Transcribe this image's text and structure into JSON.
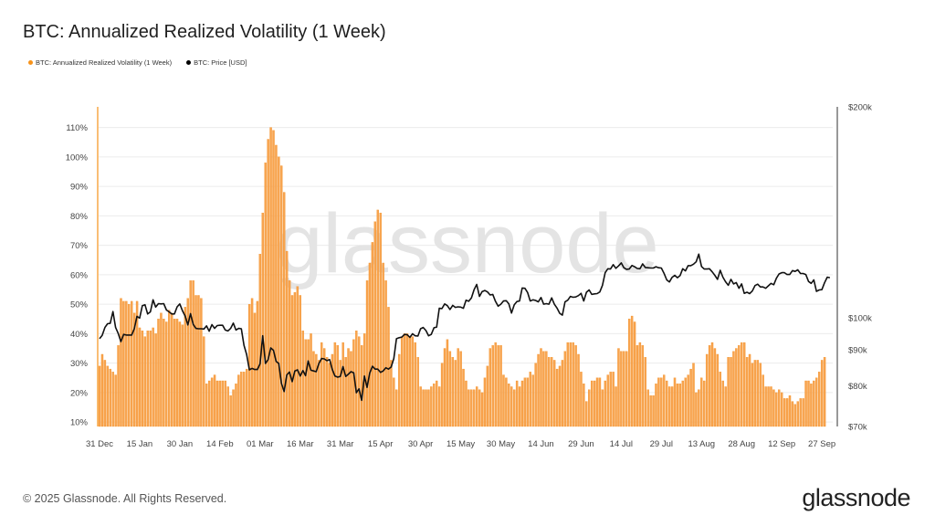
{
  "title": "BTC: Annualized Realized Volatility (1 Week)",
  "legend": [
    {
      "label": "BTC: Annualized Realized Volatility (1 Week)",
      "color": "#f7931a"
    },
    {
      "label": "BTC: Price [USD]",
      "color": "#000000"
    }
  ],
  "watermark": "glassnode",
  "footer": "© 2025 Glassnode. All Rights Reserved.",
  "logo": "glassnode",
  "chart_data": {
    "type": "bar+line",
    "title": "BTC: Annualized Realized Volatility (1 Week)",
    "x_tick_labels": [
      "31 Dec",
      "15 Jan",
      "30 Jan",
      "14 Feb",
      "01 Mar",
      "16 Mar",
      "31 Mar",
      "15 Apr",
      "30 Apr",
      "15 May",
      "30 May",
      "14 Jun",
      "29 Jun",
      "14 Jul",
      "29 Jul",
      "13 Aug",
      "28 Aug",
      "12 Sep",
      "27 Sep"
    ],
    "x_tick_interval_days": 15,
    "left_axis": {
      "ticks": [
        10,
        20,
        30,
        40,
        50,
        60,
        70,
        80,
        90,
        100,
        110
      ],
      "tick_labels": [
        "10%",
        "20%",
        "30%",
        "40%",
        "50%",
        "60%",
        "70%",
        "80%",
        "90%",
        "100%",
        "110%"
      ],
      "range": [
        8.5,
        117
      ],
      "grid": true
    },
    "right_axis": {
      "scale": "log",
      "ticks": [
        70000,
        80000,
        90000,
        100000,
        200000
      ],
      "tick_labels": [
        "$70k",
        "$80k",
        "$90k",
        "$100k",
        "$200k"
      ],
      "range": [
        70000,
        200000
      ]
    },
    "series": [
      {
        "name": "BTC: Annualized Realized Volatility (1 Week)",
        "type": "bar",
        "axis": "left",
        "color": "#f7931a",
        "unit": "%",
        "values": [
          29,
          33,
          31,
          29,
          28,
          27,
          26,
          36,
          52,
          51,
          51,
          50,
          51,
          47,
          51,
          42,
          41,
          39,
          41,
          41,
          42,
          40,
          45,
          47,
          45,
          44,
          48,
          47,
          45,
          45,
          44,
          43,
          49,
          52,
          58,
          58,
          53,
          53,
          52,
          39,
          23,
          24,
          25,
          26,
          24,
          24,
          24,
          24,
          22,
          19,
          21,
          23,
          26,
          27,
          27,
          28,
          50,
          52,
          47,
          51,
          67,
          81,
          98,
          106,
          110,
          109,
          104,
          100,
          97,
          88,
          68,
          58,
          53,
          54,
          56,
          53,
          41,
          38,
          38,
          40,
          34,
          33,
          31,
          37,
          35,
          32,
          30,
          33,
          37,
          36,
          31,
          37,
          32,
          35,
          34,
          38,
          41,
          39,
          36,
          40,
          58,
          64,
          71,
          78,
          82,
          81,
          64,
          58,
          49,
          31,
          25,
          21,
          33,
          39,
          40,
          40,
          39,
          39,
          37,
          32,
          22,
          21,
          21,
          21,
          22,
          23,
          24,
          22,
          30,
          35,
          38,
          34,
          32,
          31,
          35,
          34,
          28,
          24,
          21,
          21,
          21,
          22,
          21,
          20,
          25,
          29,
          35,
          36,
          37,
          36,
          36,
          26,
          25,
          23,
          22,
          21,
          24,
          22,
          24,
          25,
          25,
          27,
          26,
          30,
          33,
          35,
          34,
          34,
          32,
          32,
          31,
          28,
          29,
          31,
          34,
          37,
          37,
          37,
          36,
          33,
          27,
          23,
          17,
          21,
          24,
          24,
          25,
          25,
          21,
          24,
          26,
          27,
          27,
          22,
          35,
          34,
          34,
          34,
          45,
          46,
          44,
          36,
          37,
          36,
          32,
          21,
          19,
          19,
          23,
          25,
          25,
          26,
          24,
          22,
          22,
          25,
          23,
          23,
          24,
          25,
          26,
          28,
          30,
          20,
          21,
          25,
          24,
          33,
          36,
          37,
          35,
          33,
          27,
          24,
          22,
          32,
          32,
          34,
          35,
          36,
          37,
          37,
          32,
          33,
          30,
          31,
          31,
          30,
          26,
          22,
          22,
          22,
          21,
          20,
          21,
          20,
          18,
          18,
          19,
          17,
          16,
          17,
          18,
          18,
          24,
          24,
          23,
          24,
          25,
          27,
          31,
          32
        ]
      },
      {
        "name": "BTC: Price [USD]",
        "type": "line",
        "axis": "right",
        "color": "#000000",
        "unit": "USD (thousands)",
        "values": [
          93.4,
          94.4,
          96.9,
          98.1,
          98.2,
          102.1,
          96.9,
          95.0,
          92.5,
          94.7,
          94.5,
          94.5,
          94.5,
          96.5,
          100.5,
          99.9,
          104.1,
          104.4,
          101.3,
          102.0,
          106.1,
          103.6,
          104.8,
          104.7,
          104.8,
          102.6,
          102.0,
          101.3,
          101.3,
          103.7,
          104.7,
          102.4,
          100.6,
          97.7,
          101.4,
          97.9,
          96.6,
          96.5,
          96.5,
          96.4,
          97.4,
          95.7,
          97.8,
          96.6,
          97.5,
          97.6,
          97.6,
          96.1,
          95.8,
          96.6,
          98.3,
          96.1,
          96.6,
          96.5,
          91.4,
          88.7,
          84.3,
          84.7,
          84.4,
          84.4,
          86.0,
          94.3,
          86.1,
          87.2,
          90.6,
          89.9,
          86.7,
          86.1,
          80.7,
          78.5,
          82.9,
          83.7,
          81.1,
          84.0,
          84.3,
          82.6,
          84.1,
          82.7,
          86.8,
          84.2,
          84.0,
          83.8,
          86.1,
          87.5,
          87.4,
          86.9,
          87.2,
          84.4,
          82.6,
          82.3,
          82.5,
          85.2,
          82.5,
          83.1,
          83.8,
          83.5,
          78.2,
          79.2,
          76.3,
          82.6,
          79.6,
          83.4,
          85.3,
          84.5,
          84.5,
          83.6,
          84.0,
          84.9,
          84.5,
          85.1,
          87.5,
          93.4,
          93.7,
          93.9,
          94.7,
          94.6,
          93.8,
          94.9,
          94.3,
          94.2,
          96.5,
          96.9,
          95.9,
          94.3,
          94.7,
          96.8,
          97.0,
          103.2,
          103.1,
          104.7,
          104.1,
          102.8,
          104.2,
          103.5,
          103.7,
          103.6,
          103.2,
          106.0,
          105.6,
          106.8,
          109.7,
          111.6,
          107.3,
          109.0,
          109.4,
          108.9,
          107.8,
          108.0,
          105.6,
          103.9,
          104.6,
          105.7,
          105.8,
          104.7,
          101.6,
          104.4,
          105.5,
          105.7,
          110.3,
          110.2,
          108.7,
          105.7,
          106.1,
          105.9,
          105.4,
          106.9,
          104.6,
          104.8,
          104.6,
          106.8,
          104.6,
          103.3,
          101.5,
          100.9,
          105.4,
          106.0,
          107.3,
          107.0,
          107.1,
          107.6,
          108.4,
          105.7,
          108.8,
          109.6,
          108.0,
          108.2,
          108.3,
          108.9,
          111.3,
          116.0,
          117.5,
          117.4,
          119.1,
          117.7,
          118.6,
          119.8,
          117.9,
          117.3,
          117.4,
          118.8,
          118.3,
          117.6,
          117.5,
          119.4,
          118.0,
          117.9,
          117.8,
          117.8,
          118.3,
          117.9,
          117.8,
          115.8,
          113.3,
          112.5,
          114.2,
          115.0,
          114.1,
          114.9,
          117.5,
          116.7,
          118.7,
          118.7,
          119.3,
          120.2,
          123.3,
          118.4,
          117.4,
          117.4,
          117.5,
          116.3,
          115.0,
          113.5,
          116.9,
          114.3,
          112.6,
          111.3,
          113.5,
          111.8,
          112.3,
          110.2,
          111.8,
          108.4,
          108.8,
          108.3,
          109.2,
          111.2,
          111.7,
          110.7,
          110.7,
          110.2,
          111.1,
          112.0,
          111.5,
          113.9,
          115.5,
          116.0,
          116.0,
          115.3,
          115.3,
          116.8,
          116.5,
          117.1,
          115.7,
          115.7,
          115.3,
          112.7,
          112.0,
          113.3,
          109.1,
          109.6,
          109.7,
          112.2,
          114.3,
          114.1
        ]
      }
    ]
  }
}
